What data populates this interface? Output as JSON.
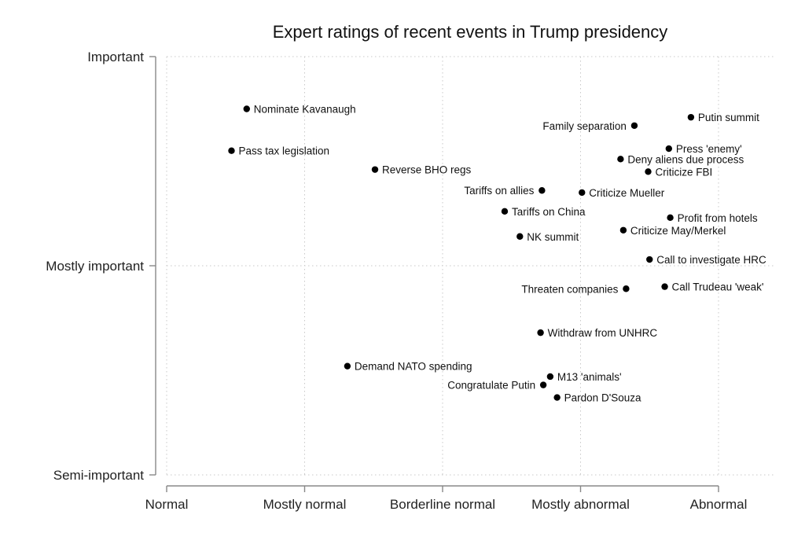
{
  "chart_data": {
    "type": "scatter",
    "title": "Expert ratings of recent events in Trump presidency",
    "xlabel": "",
    "ylabel": "",
    "xlim": [
      0,
      4
    ],
    "ylim": [
      0,
      2
    ],
    "x_ticks": [
      {
        "value": 0,
        "label": "Normal"
      },
      {
        "value": 1,
        "label": "Mostly normal"
      },
      {
        "value": 2,
        "label": "Borderline normal"
      },
      {
        "value": 3,
        "label": "Mostly abnormal"
      },
      {
        "value": 4,
        "label": "Abnormal"
      }
    ],
    "y_ticks": [
      {
        "value": 0,
        "label": "Semi-important"
      },
      {
        "value": 1,
        "label": "Mostly important"
      },
      {
        "value": 2,
        "label": "Important"
      }
    ],
    "grid": true,
    "points": [
      {
        "label": "Nominate Kavanaugh",
        "x": 0.58,
        "y": 1.75,
        "side": "right"
      },
      {
        "label": "Pass tax legislation",
        "x": 0.47,
        "y": 1.55,
        "side": "right"
      },
      {
        "label": "Reverse BHO regs",
        "x": 1.51,
        "y": 1.46,
        "side": "right"
      },
      {
        "label": "Putin summit",
        "x": 3.8,
        "y": 1.71,
        "side": "right"
      },
      {
        "label": "Family separation",
        "x": 3.39,
        "y": 1.67,
        "side": "left"
      },
      {
        "label": "Press 'enemy'",
        "x": 3.64,
        "y": 1.56,
        "side": "right"
      },
      {
        "label": "Deny aliens due process",
        "x": 3.29,
        "y": 1.51,
        "side": "right"
      },
      {
        "label": "Criticize FBI",
        "x": 3.49,
        "y": 1.45,
        "side": "right"
      },
      {
        "label": "Tariffs on allies",
        "x": 2.72,
        "y": 1.36,
        "side": "left"
      },
      {
        "label": "Criticize Mueller",
        "x": 3.01,
        "y": 1.35,
        "side": "right"
      },
      {
        "label": "Tariffs on China",
        "x": 2.45,
        "y": 1.26,
        "side": "right"
      },
      {
        "label": "Profit from hotels",
        "x": 3.65,
        "y": 1.23,
        "side": "right"
      },
      {
        "label": "Criticize May/Merkel",
        "x": 3.31,
        "y": 1.17,
        "side": "right"
      },
      {
        "label": "NK summit",
        "x": 2.56,
        "y": 1.14,
        "side": "right"
      },
      {
        "label": "Call to investigate HRC",
        "x": 3.5,
        "y": 1.03,
        "side": "right"
      },
      {
        "label": "Threaten companies",
        "x": 3.33,
        "y": 0.89,
        "side": "left"
      },
      {
        "label": "Call Trudeau 'weak'",
        "x": 3.61,
        "y": 0.9,
        "side": "right"
      },
      {
        "label": "Withdraw from UNHRC",
        "x": 2.71,
        "y": 0.68,
        "side": "right"
      },
      {
        "label": "Demand NATO spending",
        "x": 1.31,
        "y": 0.52,
        "side": "right"
      },
      {
        "label": "M13 'animals'",
        "x": 2.78,
        "y": 0.47,
        "side": "right"
      },
      {
        "label": "Congratulate Putin",
        "x": 2.73,
        "y": 0.43,
        "side": "left"
      },
      {
        "label": "Pardon D'Souza",
        "x": 2.83,
        "y": 0.37,
        "side": "right"
      }
    ]
  }
}
